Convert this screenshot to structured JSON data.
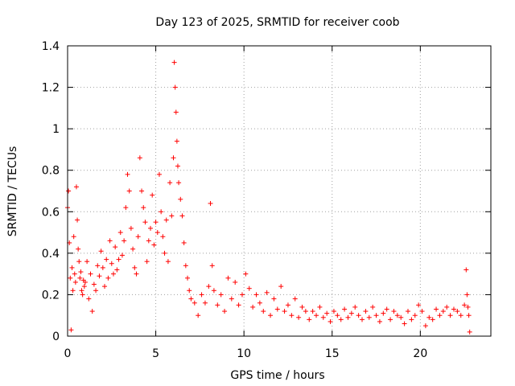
{
  "chart_data": {
    "type": "scatter",
    "title": "Day 123 of 2025, SRMTID for receiver coob",
    "xlabel": "GPS time / hours",
    "ylabel": "SRMTID / TECUs",
    "xlim": [
      0,
      24
    ],
    "ylim": [
      0,
      1.4
    ],
    "xticks": [
      0,
      5,
      10,
      15,
      20
    ],
    "xtick_labels": [
      "0",
      "5",
      "10",
      "15",
      "20"
    ],
    "yticks": [
      0,
      0.2,
      0.4,
      0.6,
      0.8,
      1.0,
      1.2,
      1.4
    ],
    "ytick_labels": [
      "0",
      "0.2",
      "0.4",
      "0.6",
      "0.8",
      "1",
      "1.2",
      "1.4"
    ],
    "grid": true,
    "marker": "plus",
    "color": "#ff0000",
    "series": [
      {
        "name": "SRMTID",
        "x": [
          0.0,
          0.05,
          0.1,
          0.15,
          0.2,
          0.25,
          0.3,
          0.35,
          0.4,
          0.45,
          0.5,
          0.55,
          0.6,
          0.65,
          0.7,
          0.75,
          0.8,
          0.85,
          0.9,
          0.95,
          1.0,
          1.1,
          1.2,
          1.3,
          1.4,
          1.5,
          1.6,
          1.7,
          1.8,
          1.9,
          2.0,
          2.1,
          2.2,
          2.3,
          2.4,
          2.5,
          2.6,
          2.7,
          2.8,
          2.9,
          3.0,
          3.1,
          3.2,
          3.3,
          3.4,
          3.5,
          3.6,
          3.7,
          3.8,
          3.9,
          4.0,
          4.1,
          4.2,
          4.3,
          4.4,
          4.5,
          4.6,
          4.7,
          4.8,
          4.9,
          5.0,
          5.1,
          5.2,
          5.3,
          5.4,
          5.5,
          5.6,
          5.7,
          5.8,
          5.9,
          6.0,
          6.05,
          6.1,
          6.15,
          6.2,
          6.25,
          6.3,
          6.4,
          6.5,
          6.6,
          6.7,
          6.8,
          6.9,
          7.0,
          7.2,
          7.4,
          7.6,
          7.8,
          8.0,
          8.1,
          8.2,
          8.3,
          8.5,
          8.7,
          8.9,
          9.1,
          9.3,
          9.5,
          9.7,
          9.9,
          10.1,
          10.3,
          10.5,
          10.7,
          10.9,
          11.1,
          11.3,
          11.5,
          11.7,
          11.9,
          12.1,
          12.3,
          12.5,
          12.7,
          12.9,
          13.1,
          13.3,
          13.5,
          13.7,
          13.9,
          14.1,
          14.3,
          14.5,
          14.7,
          14.9,
          15.1,
          15.3,
          15.5,
          15.7,
          15.9,
          16.1,
          16.3,
          16.5,
          16.7,
          16.9,
          17.1,
          17.3,
          17.5,
          17.7,
          17.9,
          18.1,
          18.3,
          18.5,
          18.7,
          18.9,
          19.1,
          19.3,
          19.5,
          19.7,
          19.9,
          20.1,
          20.3,
          20.5,
          20.7,
          20.9,
          21.1,
          21.3,
          21.5,
          21.7,
          21.9,
          22.1,
          22.3,
          22.5,
          22.6,
          22.65,
          22.7,
          22.75,
          22.8
        ],
        "y": [
          0.62,
          0.7,
          0.45,
          0.28,
          0.03,
          0.33,
          0.22,
          0.48,
          0.3,
          0.26,
          0.72,
          0.56,
          0.42,
          0.36,
          0.28,
          0.31,
          0.22,
          0.2,
          0.27,
          0.24,
          0.26,
          0.36,
          0.18,
          0.3,
          0.12,
          0.25,
          0.22,
          0.34,
          0.29,
          0.41,
          0.33,
          0.24,
          0.37,
          0.28,
          0.46,
          0.35,
          0.3,
          0.43,
          0.32,
          0.37,
          0.5,
          0.39,
          0.46,
          0.62,
          0.78,
          0.7,
          0.52,
          0.42,
          0.33,
          0.3,
          0.48,
          0.86,
          0.7,
          0.62,
          0.55,
          0.36,
          0.46,
          0.52,
          0.68,
          0.44,
          0.55,
          0.5,
          0.78,
          0.6,
          0.48,
          0.4,
          0.56,
          0.36,
          0.74,
          0.58,
          0.86,
          1.32,
          1.2,
          1.08,
          0.94,
          0.82,
          0.74,
          0.66,
          0.58,
          0.45,
          0.34,
          0.28,
          0.22,
          0.18,
          0.16,
          0.1,
          0.2,
          0.16,
          0.24,
          0.64,
          0.34,
          0.22,
          0.15,
          0.2,
          0.12,
          0.28,
          0.18,
          0.26,
          0.15,
          0.2,
          0.3,
          0.23,
          0.14,
          0.2,
          0.16,
          0.12,
          0.21,
          0.1,
          0.18,
          0.13,
          0.24,
          0.12,
          0.15,
          0.1,
          0.18,
          0.09,
          0.14,
          0.12,
          0.08,
          0.12,
          0.1,
          0.14,
          0.09,
          0.11,
          0.07,
          0.12,
          0.1,
          0.08,
          0.13,
          0.09,
          0.11,
          0.14,
          0.1,
          0.08,
          0.12,
          0.09,
          0.14,
          0.1,
          0.07,
          0.11,
          0.13,
          0.08,
          0.12,
          0.1,
          0.09,
          0.06,
          0.12,
          0.08,
          0.1,
          0.15,
          0.12,
          0.05,
          0.09,
          0.08,
          0.13,
          0.1,
          0.12,
          0.14,
          0.1,
          0.13,
          0.12,
          0.1,
          0.15,
          0.32,
          0.2,
          0.14,
          0.1,
          0.02
        ]
      }
    ]
  }
}
